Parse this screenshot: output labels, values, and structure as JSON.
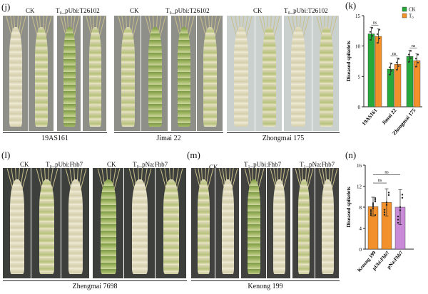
{
  "panels": {
    "j": {
      "letter": "(j)",
      "groups": [
        {
          "ck": "CK",
          "t": "T₀_pUbi:T26102",
          "caption": "19AS161"
        },
        {
          "ck": "CK",
          "t": "T₀_pUbi:T26102",
          "caption": "Jimai 22"
        },
        {
          "ck": "CK",
          "t": "T₀_pUbi:T26102",
          "caption": "Zhongmai 175"
        }
      ]
    },
    "k": {
      "letter": "(k)"
    },
    "l": {
      "letter": "(l)",
      "labels": [
        "CK",
        "T₀_pUbi:Fhb7",
        "CK",
        "T₀_pNa:Fhb7"
      ],
      "caption": "Zhengmai 7698"
    },
    "m": {
      "letter": "(m)",
      "labels": [
        "CK",
        "T₁_pUbi:Fhb7",
        "T₁_pNa:Fhb7"
      ],
      "caption": "Kenong 199"
    },
    "n": {
      "letter": "(n)"
    }
  },
  "colors": {
    "ck": "#27a83a",
    "t0": "#f2912b",
    "purple": "#c98ad8"
  },
  "chart_data": [
    {
      "id": "k",
      "type": "bar",
      "ylabel": "Diseased spikelets",
      "ylim": [
        0,
        15
      ],
      "yticks": [
        0,
        5,
        10,
        15
      ],
      "categories": [
        "19AS161",
        "Jimai 22",
        "Zhongmai 175"
      ],
      "legend": {
        "placement": "top-right",
        "entries": [
          "CK",
          "T₀"
        ]
      },
      "series": [
        {
          "name": "CK",
          "color": "#27a83a",
          "values": [
            12,
            6.2,
            8.3
          ],
          "errors": [
            1.1,
            1.0,
            1.0
          ]
        },
        {
          "name": "T₀",
          "color": "#f2912b",
          "values": [
            11.6,
            7,
            7.6
          ],
          "errors": [
            1.2,
            1.0,
            1.1
          ]
        }
      ],
      "significance": [
        "ns",
        "ns",
        "ns"
      ]
    },
    {
      "id": "n",
      "type": "bar",
      "ylabel": "Diseased spikelets",
      "ylim": [
        0,
        16
      ],
      "yticks": [
        0,
        4,
        8,
        12,
        16
      ],
      "categories": [
        "Kenong 199",
        "pUbi:Fhb7",
        "pNa:Fhb7"
      ],
      "values": [
        8.1,
        8.9,
        8
      ],
      "errors": [
        1.8,
        2.6,
        3.3
      ],
      "colors": [
        "#f2912b",
        "#f2912b",
        "#c98ad8"
      ],
      "significance": [
        "ns",
        "ns"
      ]
    }
  ]
}
